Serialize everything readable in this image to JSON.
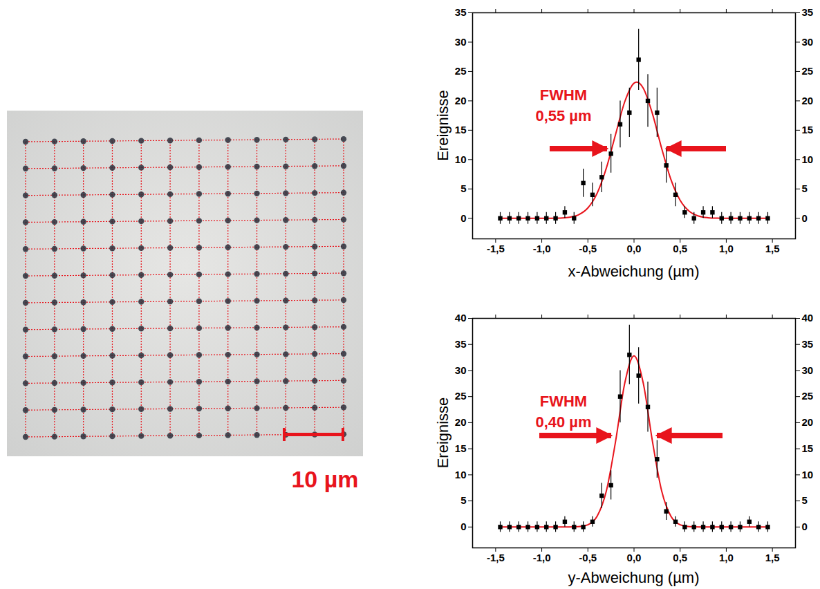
{
  "micrograph": {
    "scale_bar": "10 µm"
  },
  "chart_data": [
    {
      "type": "scatter",
      "xlabel": "x-Abweichung (µm)",
      "ylabel": "Ereignisse",
      "annotation": [
        "FWHM",
        "0,55 µm"
      ],
      "color": "#000000",
      "marker": "square",
      "grid": false,
      "x": [
        -1.45,
        -1.35,
        -1.25,
        -1.15,
        -1.05,
        -0.95,
        -0.85,
        -0.75,
        -0.65,
        -0.55,
        -0.45,
        -0.35,
        -0.25,
        -0.15,
        -0.05,
        0.05,
        0.15,
        0.25,
        0.35,
        0.45,
        0.55,
        0.65,
        0.75,
        0.85,
        0.95,
        1.05,
        1.15,
        1.25,
        1.35,
        1.45
      ],
      "values": [
        0,
        0,
        0,
        0,
        0,
        0,
        0,
        1,
        0,
        6,
        4,
        7,
        11,
        16,
        18,
        27,
        20,
        18,
        9,
        4,
        1,
        0,
        1,
        1,
        0,
        0,
        0,
        0,
        0,
        0
      ],
      "errors": [
        1,
        1,
        1,
        1,
        1,
        1,
        1,
        1,
        1,
        2.4,
        2,
        2.6,
        3.3,
        4,
        4.2,
        5.2,
        4.5,
        4.2,
        3,
        2,
        1,
        1,
        1,
        1,
        1,
        1,
        1,
        1,
        1,
        1
      ],
      "fit": {
        "type": "line",
        "color": "#e8141c",
        "line_style": "solid",
        "x": [
          -1.45,
          -1.0,
          -0.8,
          -0.7,
          -0.6,
          -0.5,
          -0.4,
          -0.3,
          -0.2,
          -0.1,
          0.0,
          0.03,
          0.1,
          0.2,
          0.3,
          0.4,
          0.5,
          0.6,
          0.7,
          0.8,
          0.9,
          1.0,
          1.45
        ],
        "values": [
          0,
          0,
          0.04,
          0.18,
          0.61,
          1.77,
          4.26,
          8.55,
          14.29,
          19.87,
          23.01,
          23.2,
          22.18,
          17.8,
          11.9,
          6.61,
          3.06,
          1.18,
          0.38,
          0.1,
          0.02,
          0,
          0
        ]
      },
      "xlim": [
        -1.75,
        1.75
      ],
      "xticks": [
        {
          "value": -1.5,
          "label": "-1,5"
        },
        {
          "value": -1.0,
          "label": "-1,0"
        },
        {
          "value": -0.5,
          "label": "-0,5"
        },
        {
          "value": 0,
          "label": "0,0"
        },
        {
          "value": 0.5,
          "label": "0,5"
        },
        {
          "value": 1.0,
          "label": "1,0"
        },
        {
          "value": 1.5,
          "label": "1,5"
        }
      ],
      "ylim": [
        -3.5,
        35
      ],
      "yticks": [
        0,
        5,
        10,
        15,
        20,
        25,
        30,
        35
      ]
    },
    {
      "type": "scatter",
      "xlabel": "y-Abweichung (µm)",
      "ylabel": "Ereignisse",
      "annotation": [
        "FWHM",
        "0,40 µm"
      ],
      "color": "#000000",
      "marker": "square",
      "grid": false,
      "x": [
        -1.45,
        -1.35,
        -1.25,
        -1.15,
        -1.05,
        -0.95,
        -0.85,
        -0.75,
        -0.65,
        -0.55,
        -0.45,
        -0.35,
        -0.25,
        -0.15,
        -0.05,
        0.05,
        0.15,
        0.25,
        0.35,
        0.45,
        0.55,
        0.65,
        0.75,
        0.85,
        0.95,
        1.05,
        1.15,
        1.25,
        1.35,
        1.45
      ],
      "values": [
        0,
        0,
        0,
        0,
        0,
        0,
        0,
        1,
        0,
        0,
        1,
        6,
        8,
        25,
        33,
        29,
        23,
        13,
        3,
        1,
        0,
        0,
        0,
        0,
        0,
        0,
        0,
        1,
        0,
        0
      ],
      "errors": [
        1,
        1,
        1,
        1,
        1,
        1,
        1,
        1,
        1,
        1,
        1,
        2.4,
        2.8,
        5,
        5.7,
        5.4,
        4.8,
        3.6,
        1.7,
        1,
        1,
        1,
        1,
        1,
        1,
        1,
        1,
        1,
        1,
        1
      ],
      "fit": {
        "type": "line",
        "color": "#e8141c",
        "line_style": "solid",
        "x": [
          -1.45,
          -0.8,
          -0.7,
          -0.6,
          -0.5,
          -0.4,
          -0.3,
          -0.2,
          -0.1,
          0,
          0.1,
          0.2,
          0.3,
          0.4,
          0.5,
          0.6,
          0.7,
          0.8,
          1.45
        ],
        "values": [
          0,
          0,
          0.01,
          0.06,
          0.43,
          2.05,
          6.89,
          16.4,
          27.6,
          32.8,
          27.6,
          16.4,
          6.89,
          2.05,
          0.43,
          0.06,
          0.01,
          0,
          0
        ]
      },
      "xlim": [
        -1.75,
        1.75
      ],
      "xticks": [
        {
          "value": -1.5,
          "label": "-1,5"
        },
        {
          "value": -1.0,
          "label": "-1,0"
        },
        {
          "value": -0.5,
          "label": "-0,5"
        },
        {
          "value": 0,
          "label": "0,0"
        },
        {
          "value": 0.5,
          "label": "0,5"
        },
        {
          "value": 1.0,
          "label": "1,0"
        },
        {
          "value": 1.5,
          "label": "1,5"
        }
      ],
      "ylim": [
        -4,
        40
      ],
      "yticks": [
        0,
        5,
        10,
        15,
        20,
        25,
        30,
        35,
        40
      ]
    }
  ]
}
